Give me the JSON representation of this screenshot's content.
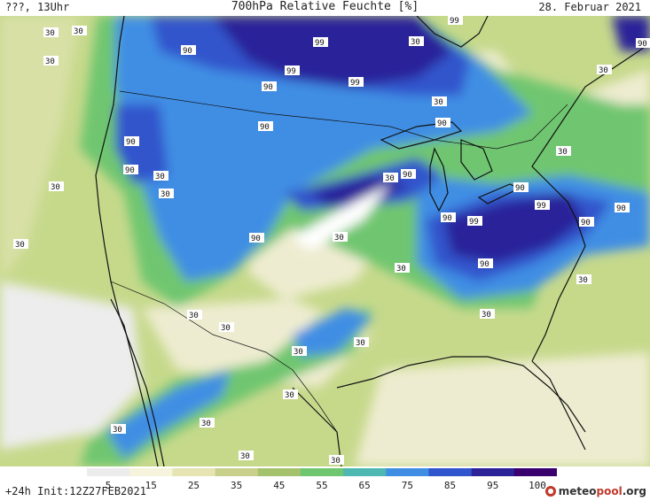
{
  "header": {
    "left": "???, 13Uhr",
    "title": "700hPa Relative Feuchte [%]",
    "date": "28. Februar 2021"
  },
  "footer": {
    "left": "+24h Init:12Z27FEB2021",
    "brand_main": "meteo",
    "brand_accent": "pool",
    "brand_suffix": ".org"
  },
  "colorbar": {
    "tick_labels": [
      "5",
      "15",
      "25",
      "35",
      "45",
      "55",
      "65",
      "75",
      "85",
      "95",
      "100"
    ],
    "colors": [
      "#ececec",
      "#f6f4dc",
      "#e6e4b2",
      "#c9d08c",
      "#a4c26c",
      "#6fc670",
      "#4eb7b2",
      "#3f8ee4",
      "#3155cc",
      "#2c2399",
      "#3a006e"
    ]
  },
  "contour_labels": [
    "30",
    "90",
    "99"
  ],
  "map_colors": {
    "base": "#c6d98b",
    "ocean_west": "#d8e0a6",
    "ocean_southwest": "#ededed",
    "dry": "#eeecd0",
    "very_dry": "#ffffff",
    "moist": "#6fc670",
    "wet": "#3f8ee4",
    "very_wet": "#3155cc",
    "saturated": "#2c2399",
    "coast": "#111111"
  }
}
